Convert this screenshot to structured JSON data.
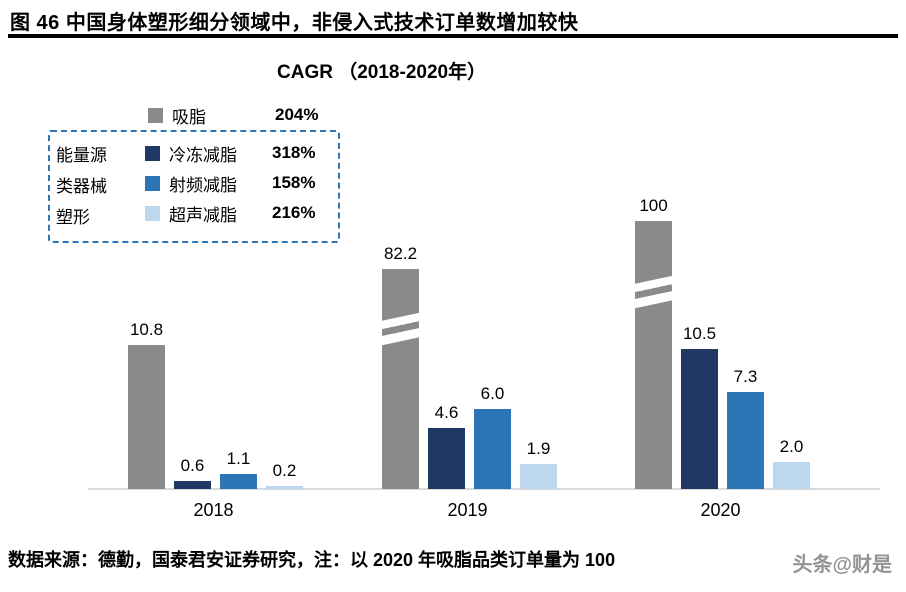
{
  "figure": {
    "title": "图 46 中国身体塑形细分领域中，非侵入式技术订单数增加较快",
    "source_note": "数据来源：德勤，国泰君安证券研究，注：以 2020 年吸脂品类订单量为 100",
    "watermark": "头条@财是"
  },
  "chart_data": {
    "type": "bar",
    "title": "CAGR （2018-2020年）",
    "categories": [
      "2018",
      "2019",
      "2020"
    ],
    "series": [
      {
        "key": "liposuction",
        "name": "吸脂",
        "cagr": "204%",
        "color": "#8a8a8a",
        "values": [
          10.8,
          82.2,
          100
        ],
        "labels": [
          "10.8",
          "82.2",
          "100"
        ]
      },
      {
        "key": "cryo",
        "name": "冷冻减脂",
        "cagr": "318%",
        "color": "#1f3864",
        "values": [
          0.6,
          4.6,
          10.5
        ],
        "labels": [
          "0.6",
          "4.6",
          "10.5"
        ]
      },
      {
        "key": "rf",
        "name": "射频减脂",
        "cagr": "158%",
        "color": "#2e75b6",
        "values": [
          1.1,
          6.0,
          7.3
        ],
        "labels": [
          "1.1",
          "6.0",
          "7.3"
        ]
      },
      {
        "key": "ultrasound",
        "name": "超声减脂",
        "cagr": "216%",
        "color": "#bdd7ee",
        "values": [
          0.2,
          1.9,
          2.0
        ],
        "labels": [
          "0.2",
          "1.9",
          "2.0"
        ]
      }
    ],
    "legend_group_lines": [
      "能量源",
      "类器械",
      "塑形"
    ],
    "legend_box_color": "#2e75b6",
    "axis_break": {
      "series": "吸脂",
      "categories": [
        "2019",
        "2020"
      ]
    },
    "xlabel": "",
    "ylabel": "",
    "gridlines": false,
    "legend_position": "top-left",
    "value_scale_note": "2020 吸脂 = 100"
  }
}
